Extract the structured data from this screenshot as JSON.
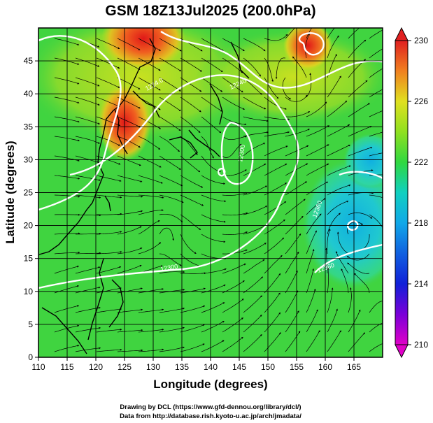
{
  "figure": {
    "title": "GSM 18Z13Jul2025 (200.0hPa)",
    "xlabel": "Longitude (degrees)",
    "ylabel": "Latitude  (degrees)",
    "credit_line1": "Drawing by DCL (https://www.gfd-dennou.org/library/dcl/)",
    "credit_line2": "Data from http://database.rish.kyoto-u.ac.jp/arch/jmadata/"
  },
  "axes": {
    "x_ticks": [
      110,
      115,
      120,
      125,
      130,
      135,
      140,
      145,
      150,
      155,
      160,
      165
    ],
    "x_tick_labels": [
      "110",
      "115",
      "120",
      "125",
      "130",
      "135",
      "140",
      "145",
      "150",
      "155",
      "160",
      "165"
    ],
    "y_ticks": [
      0,
      5,
      10,
      15,
      20,
      25,
      30,
      35,
      40,
      45
    ],
    "y_tick_labels": [
      "0",
      "5",
      "10",
      "15",
      "20",
      "25",
      "30",
      "35",
      "40",
      "45"
    ]
  },
  "colorbar": {
    "ticks": [
      210,
      214,
      218,
      222,
      226,
      230
    ],
    "tick_labels": [
      "210",
      "214",
      "218",
      "222",
      "226",
      "230"
    ],
    "colors": [
      "#e000c8",
      "#7a00d8",
      "#1020d8",
      "#1090e8",
      "#10c8d8",
      "#20d890",
      "#30d830",
      "#a0e020",
      "#f0e020",
      "#f0a020",
      "#f05020",
      "#e02020"
    ]
  },
  "contour_labels": [
    "1224.0",
    "12240",
    "12300",
    "12300",
    "12360",
    "12360"
  ],
  "colors": {
    "background": "#ffffff",
    "field_default": "#40d440",
    "warm": "#e83020",
    "orange": "#f07818",
    "yellow": "#d8e020",
    "cool": "#20c8d0",
    "contour": "#ffffff",
    "streamline": "#000000"
  },
  "chart_data": {
    "type": "heatmap",
    "title": "GSM 18Z13Jul2025 (200.0hPa)",
    "xlabel": "Longitude (degrees)",
    "ylabel": "Latitude  (degrees)",
    "xlim": [
      110,
      170
    ],
    "ylim": [
      0,
      50
    ],
    "colorbar_range": [
      210,
      230
    ],
    "regions": [
      {
        "lon": 125.5,
        "lat": 36.5,
        "value": 229
      },
      {
        "lon": 126,
        "lat": 47,
        "value": 227
      },
      {
        "lon": 155,
        "lat": 45.5,
        "value": 230
      },
      {
        "lon": 163,
        "lat": 22,
        "value": 218
      },
      {
        "lon": 165,
        "lat": 32,
        "value": 219
      },
      {
        "lon": 140,
        "lat": 20,
        "value": 223
      },
      {
        "lon": 118,
        "lat": 38,
        "value": 225
      }
    ]
  }
}
